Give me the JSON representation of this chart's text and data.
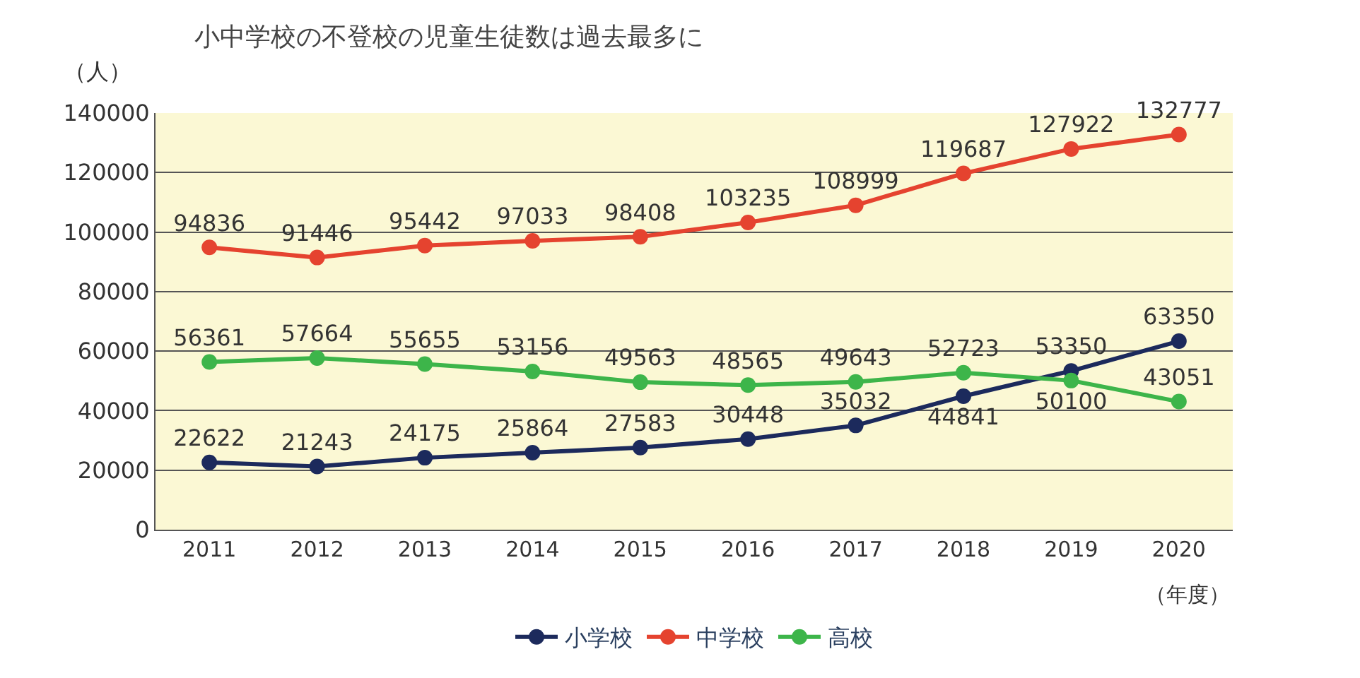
{
  "chart_data": {
    "type": "line",
    "title": "小中学校の不登校の児童生徒数は過去最多に",
    "ylabel": "（人）",
    "xlabel": "（年度）",
    "categories": [
      "2011",
      "2012",
      "2013",
      "2014",
      "2015",
      "2016",
      "2017",
      "2018",
      "2019",
      "2020"
    ],
    "series": [
      {
        "name": "小学校",
        "color": "#1c2a5c",
        "values": [
          22622,
          21243,
          24175,
          25864,
          27583,
          30448,
          35032,
          44841,
          53350,
          63350
        ]
      },
      {
        "name": "中学校",
        "color": "#e5432f",
        "values": [
          94836,
          91446,
          95442,
          97033,
          98408,
          103235,
          108999,
          119687,
          127922,
          132777
        ]
      },
      {
        "name": "高校",
        "color": "#3db54a",
        "values": [
          56361,
          57664,
          55655,
          53156,
          49563,
          48565,
          49643,
          52723,
          50100,
          43051
        ]
      }
    ],
    "ylim": [
      0,
      140000
    ],
    "yticks": [
      0,
      20000,
      40000,
      60000,
      80000,
      100000,
      120000,
      140000
    ],
    "grid": "y",
    "legend": "bottom",
    "marker": "circle",
    "line_style": "solid",
    "data_labels": true
  }
}
